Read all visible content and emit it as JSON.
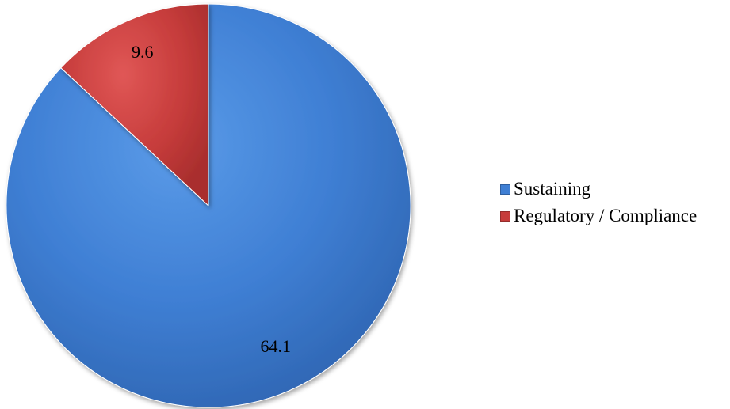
{
  "chart_data": {
    "type": "pie",
    "categories": [
      "Sustaining",
      "Regulatory / Compliance"
    ],
    "values": [
      64.1,
      9.6
    ],
    "data_labels": [
      "64.1",
      "9.6"
    ],
    "colors": [
      "#3f7fd4",
      "#c63c3b"
    ],
    "start_angle": "12 o'clock",
    "direction": "clockwise",
    "legend": "right"
  }
}
